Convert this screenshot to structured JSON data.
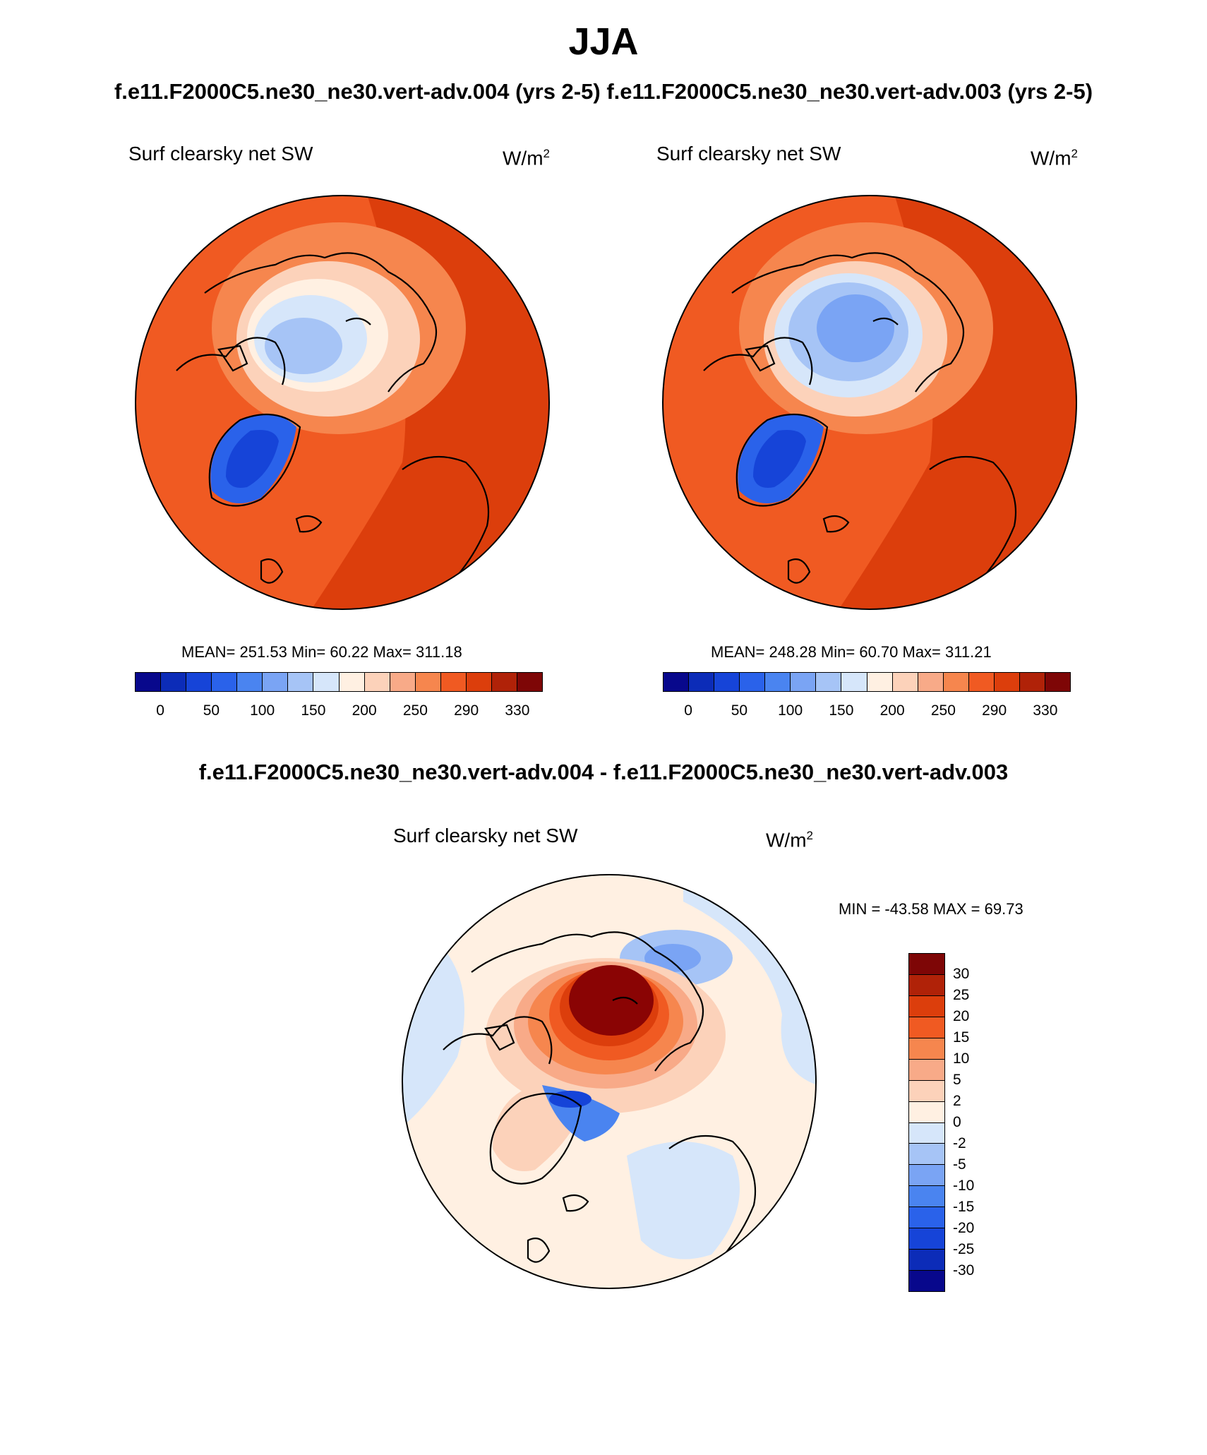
{
  "figure": {
    "season": "JJA",
    "case_a_title": "f.e11.F2000C5.ne30_ne30.vert-adv.004 (yrs 2-5)",
    "case_b_title": "f.e11.F2000C5.ne30_ne30.vert-adv.003 (yrs 2-5)",
    "diff_title": "f.e11.F2000C5.ne30_ne30.vert-adv.004 - f.e11.F2000C5.ne30_ne30.vert-adv.003"
  },
  "panels": [
    {
      "variable": "Surf clearsky net SW",
      "units": "W/m",
      "units_exp": "2",
      "stats": "MEAN= 251.53  Min=  60.22  Max= 311.18"
    },
    {
      "variable": "Surf clearsky net SW",
      "units": "W/m",
      "units_exp": "2",
      "stats": "MEAN= 248.28  Min=  60.70  Max= 311.21"
    },
    {
      "variable": "Surf clearsky net SW",
      "units": "W/m",
      "units_exp": "2",
      "stats": "MIN = -43.58 MAX =  69.73"
    }
  ],
  "colorbar_abs": {
    "colors": [
      "#08088c",
      "#0c2cb8",
      "#1644d8",
      "#2a62ea",
      "#4a84f0",
      "#7aa4f4",
      "#a6c4f6",
      "#d6e6fa",
      "#fff0e2",
      "#fcd2ba",
      "#f8aa88",
      "#f6864e",
      "#f05a22",
      "#dc3e0c",
      "#b02208",
      "#7e0606"
    ],
    "ticks": [
      "0",
      "50",
      "100",
      "150",
      "200",
      "250",
      "290",
      "330"
    ]
  },
  "colorbar_diff": {
    "colors": [
      "#7e0606",
      "#b02208",
      "#dc3e0c",
      "#f05a22",
      "#f6864e",
      "#f8aa88",
      "#fcd2ba",
      "#fff0e2",
      "#d6e6fa",
      "#a6c4f6",
      "#7aa4f4",
      "#4a84f0",
      "#2a62ea",
      "#1644d8",
      "#0c2cb8",
      "#08088c"
    ],
    "ticks": [
      "30",
      "25",
      "20",
      "15",
      "10",
      "5",
      "2",
      "0",
      "-2",
      "-5",
      "-10",
      "-15",
      "-20",
      "-25",
      "-30"
    ]
  }
}
